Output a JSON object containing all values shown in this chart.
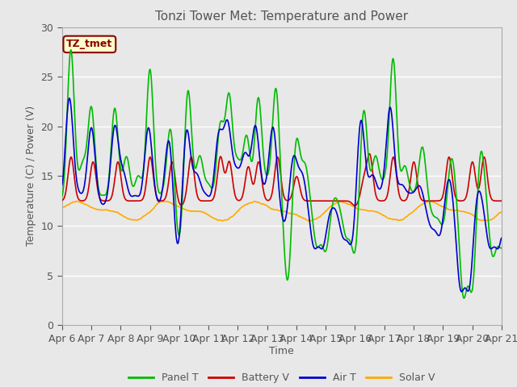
{
  "title": "Tonzi Tower Met: Temperature and Power",
  "xlabel": "Time",
  "ylabel": "Temperature (C) / Power (V)",
  "ylim": [
    0,
    30
  ],
  "annotation": "TZ_tmet",
  "annotation_color": "#880000",
  "annotation_bg": "#ffffcc",
  "x_tick_labels": [
    "Apr 6",
    "Apr 7",
    "Apr 8",
    "Apr 9",
    "Apr 10",
    "Apr 11",
    "Apr 12",
    "Apr 13",
    "Apr 14",
    "Apr 15",
    "Apr 16",
    "Apr 17",
    "Apr 18",
    "Apr 19",
    "Apr 20",
    "Apr 21"
  ],
  "panel_color": "#00bb00",
  "battery_color": "#cc0000",
  "air_color": "#0000cc",
  "solar_color": "#ffaa00",
  "lw": 1.2,
  "bg_color": "#e8e8e8",
  "plot_bg": "#e8e8e8",
  "grid_color": "#ffffff",
  "yticks": [
    0,
    5,
    10,
    15,
    20,
    25,
    30
  ]
}
